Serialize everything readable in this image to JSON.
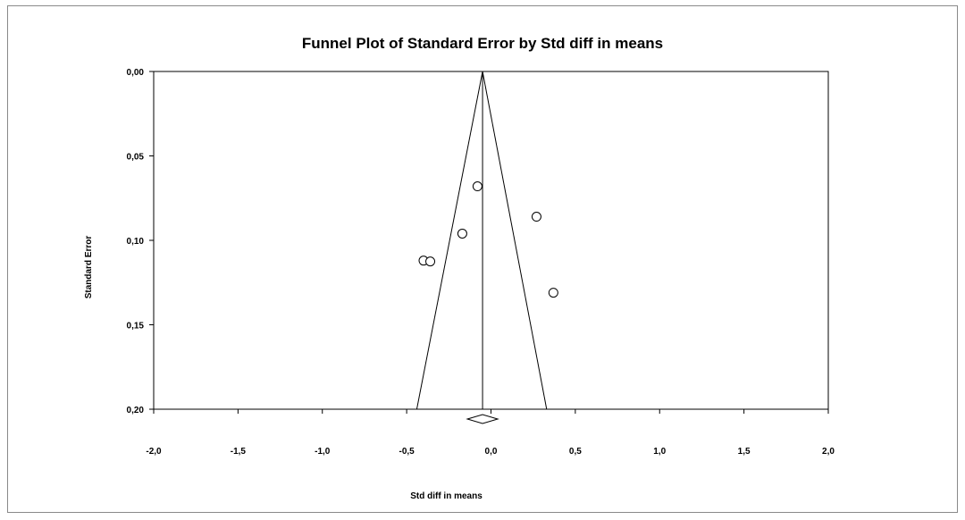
{
  "chart_data": {
    "type": "scatter",
    "title": "Funnel Plot of Standard Error by Std diff in means",
    "xlabel": "Std diff in means",
    "ylabel": "Standard Error",
    "xlim": [
      -2.0,
      2.0
    ],
    "ylim": [
      0.0,
      0.2
    ],
    "y_inverted": true,
    "x_ticks": [
      -2.0,
      -1.5,
      -1.0,
      -0.5,
      0.0,
      0.5,
      1.0,
      1.5,
      2.0
    ],
    "x_tick_labels": [
      "-2,0",
      "-1,5",
      "-1,0",
      "-0,5",
      "0,0",
      "0,5",
      "1,0",
      "1,5",
      "2,0"
    ],
    "y_ticks": [
      0.0,
      0.05,
      0.1,
      0.15,
      0.2
    ],
    "y_tick_labels": [
      "0,00",
      "0,05",
      "0,10",
      "0,15",
      "0,20"
    ],
    "series": [
      {
        "marker": "open-circle",
        "points": [
          {
            "x": -0.08,
            "y": 0.068
          },
          {
            "x": -0.17,
            "y": 0.096
          },
          {
            "x": 0.27,
            "y": 0.086
          },
          {
            "x": -0.4,
            "y": 0.112
          },
          {
            "x": -0.36,
            "y": 0.1125
          },
          {
            "x": 0.37,
            "y": 0.131
          }
        ]
      }
    ],
    "pooled_estimate": -0.05,
    "funnel_limits_at_max_se": [
      -0.44,
      0.33
    ],
    "summary_diamond": {
      "center": -0.05,
      "lower": -0.14,
      "upper": 0.04
    },
    "grid": false,
    "legend": "none"
  }
}
